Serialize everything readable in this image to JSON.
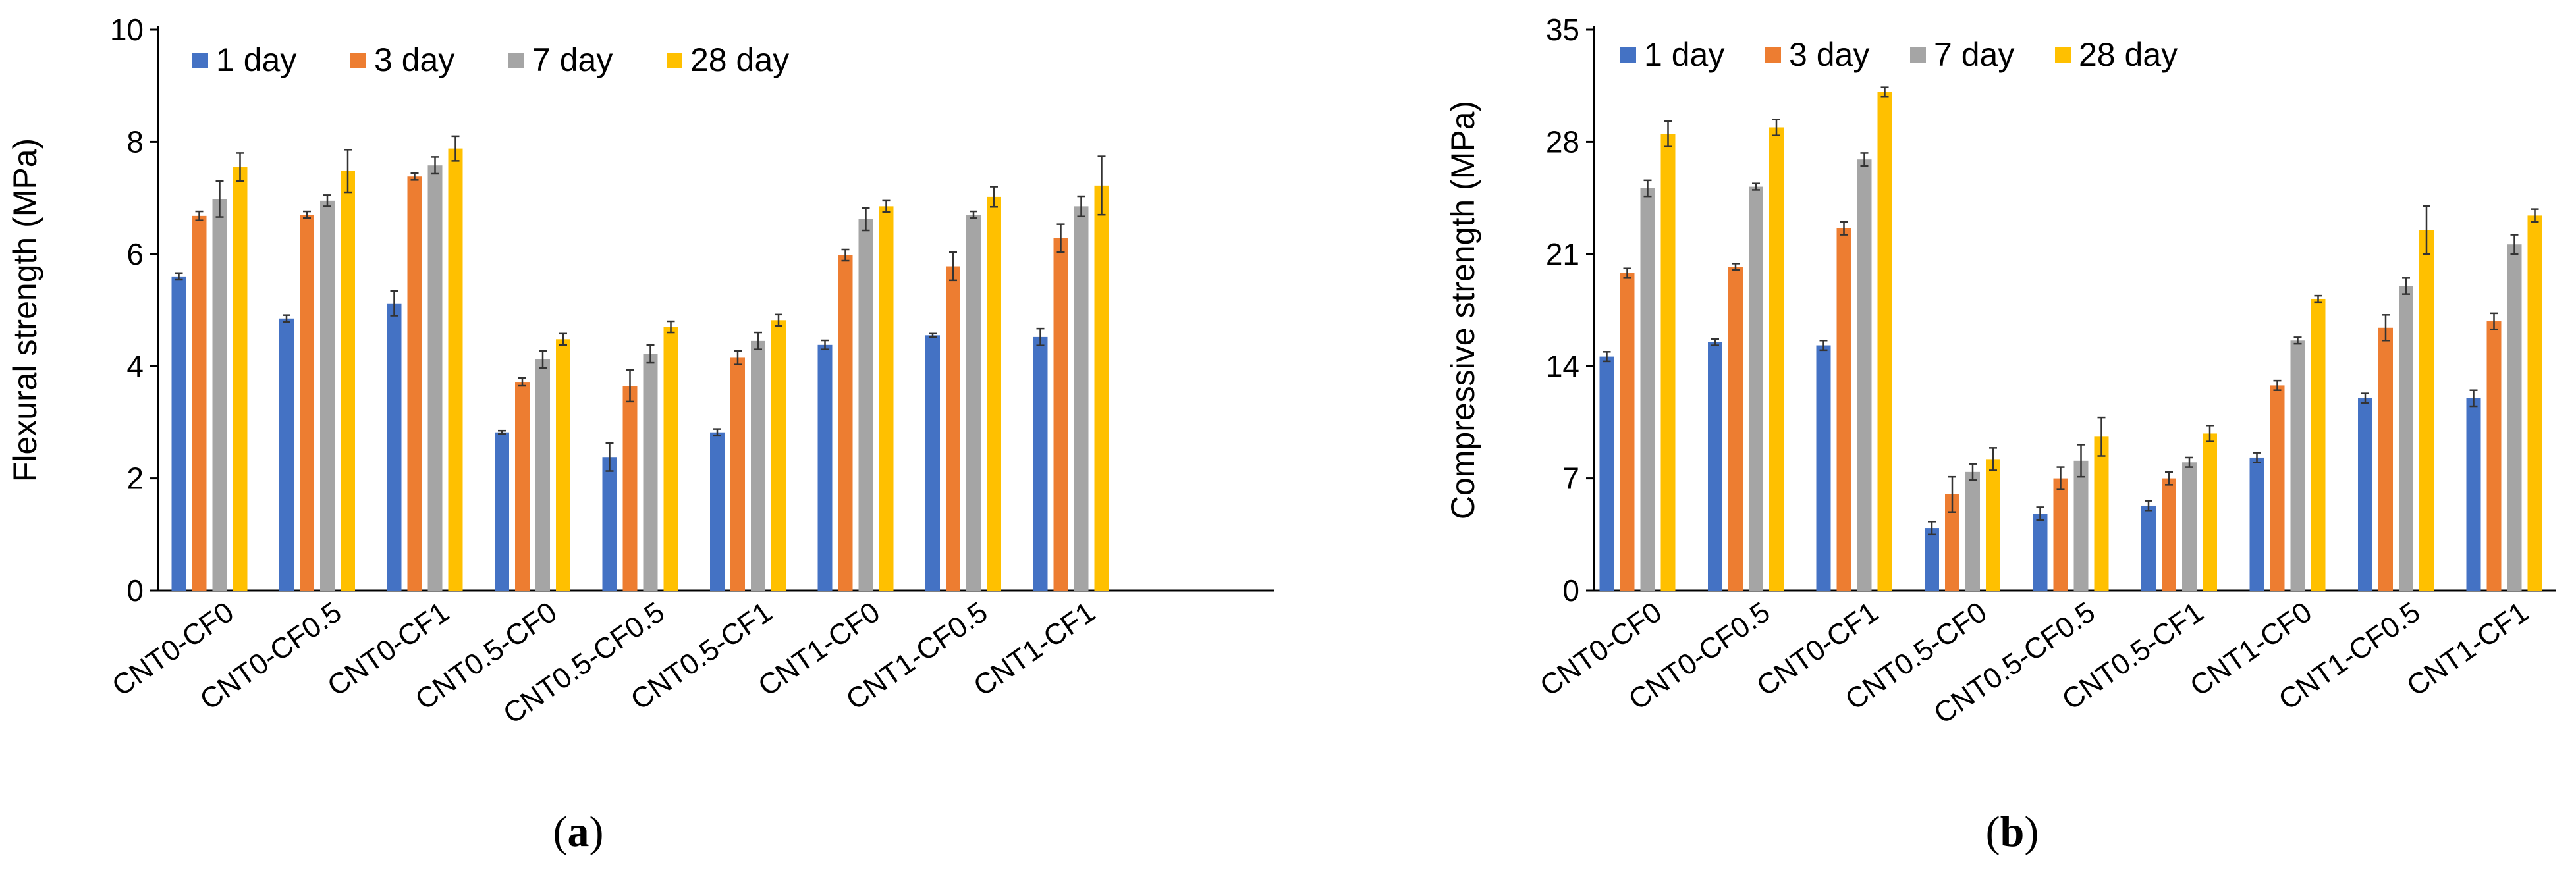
{
  "chart_data": [
    {
      "type": "bar",
      "panel_label": "a",
      "title": "",
      "xlabel": "",
      "ylabel": "Flexural strength (MPa)",
      "ylim": [
        0,
        10
      ],
      "yticks": [
        0,
        2,
        4,
        6,
        8,
        10
      ],
      "legend_position": "top-left",
      "categories": [
        "CNT0-CF0",
        "CNT0-CF0.5",
        "CNT0-CF1",
        "CNT0.5-CF0",
        "CNT0.5-CF0.5",
        "CNT0.5-CF1",
        "CNT1-CF0",
        "CNT1-CF0.5",
        "CNT1-CF1"
      ],
      "series": [
        {
          "name": "1 day",
          "color": "#4472C4",
          "values": [
            5.6,
            4.85,
            5.12,
            2.82,
            2.38,
            2.82,
            4.38,
            4.55,
            4.52
          ],
          "errors": [
            0.06,
            0.06,
            0.22,
            0.03,
            0.25,
            0.06,
            0.08,
            0.03,
            0.15
          ]
        },
        {
          "name": "3 day",
          "color": "#ED7D31",
          "values": [
            6.68,
            6.7,
            7.38,
            3.72,
            3.65,
            4.15,
            5.98,
            5.78,
            6.28
          ],
          "errors": [
            0.08,
            0.06,
            0.06,
            0.07,
            0.28,
            0.12,
            0.1,
            0.25,
            0.25
          ]
        },
        {
          "name": "7 day",
          "color": "#A5A5A5",
          "values": [
            6.98,
            6.95,
            7.58,
            4.12,
            4.22,
            4.45,
            6.62,
            6.7,
            6.85
          ],
          "errors": [
            0.32,
            0.1,
            0.15,
            0.15,
            0.16,
            0.15,
            0.2,
            0.06,
            0.18
          ]
        },
        {
          "name": "28 day",
          "color": "#FFC000",
          "values": [
            7.55,
            7.48,
            7.88,
            4.48,
            4.7,
            4.82,
            6.85,
            7.02,
            7.22
          ],
          "errors": [
            0.25,
            0.38,
            0.22,
            0.1,
            0.1,
            0.1,
            0.1,
            0.18,
            0.52
          ]
        }
      ]
    },
    {
      "type": "bar",
      "panel_label": "b",
      "title": "",
      "xlabel": "",
      "ylabel": "Compressive strength (MPa)",
      "ylim": [
        0,
        35
      ],
      "yticks": [
        0,
        7,
        14,
        21,
        28,
        35
      ],
      "legend_position": "top-left",
      "categories": [
        "CNT0-CF0",
        "CNT0-CF0.5",
        "CNT0-CF1",
        "CNT0.5-CF0",
        "CNT0.5-CF0.5",
        "CNT0.5-CF1",
        "CNT1-CF0",
        "CNT1-CF0.5",
        "CNT1-CF1"
      ],
      "series": [
        {
          "name": "1 day",
          "color": "#4472C4",
          "values": [
            14.6,
            15.5,
            15.3,
            3.9,
            4.8,
            5.3,
            8.3,
            12.0,
            12.0
          ],
          "errors": [
            0.3,
            0.2,
            0.3,
            0.4,
            0.4,
            0.3,
            0.3,
            0.3,
            0.5
          ]
        },
        {
          "name": "3 day",
          "color": "#ED7D31",
          "values": [
            19.8,
            20.2,
            22.6,
            6.0,
            7.0,
            7.0,
            12.8,
            16.4,
            16.8
          ],
          "errors": [
            0.3,
            0.2,
            0.4,
            1.1,
            0.7,
            0.4,
            0.3,
            0.8,
            0.5
          ]
        },
        {
          "name": "7 day",
          "color": "#A5A5A5",
          "values": [
            25.1,
            25.2,
            26.9,
            7.4,
            8.1,
            8.0,
            15.6,
            19.0,
            21.6
          ],
          "errors": [
            0.5,
            0.2,
            0.4,
            0.5,
            1.0,
            0.3,
            0.2,
            0.5,
            0.6
          ]
        },
        {
          "name": "28 day",
          "color": "#FFC000",
          "values": [
            28.5,
            28.9,
            31.1,
            8.2,
            9.6,
            9.8,
            18.2,
            22.5,
            23.4
          ],
          "errors": [
            0.8,
            0.5,
            0.3,
            0.7,
            1.2,
            0.5,
            0.2,
            1.5,
            0.4
          ]
        }
      ]
    }
  ]
}
